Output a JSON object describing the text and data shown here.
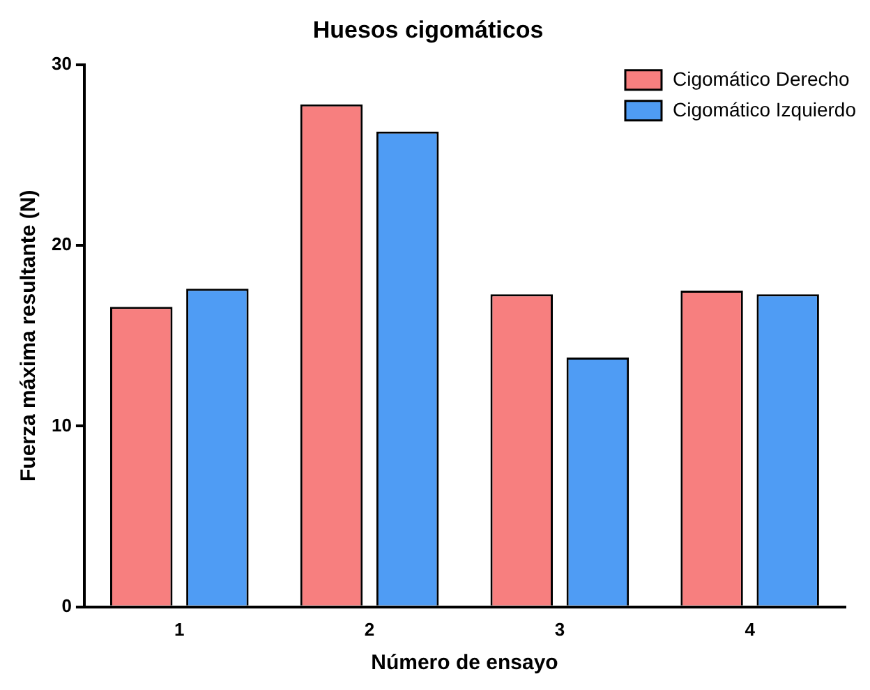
{
  "chart_data": {
    "type": "bar",
    "title": "Huesos cigomáticos",
    "xlabel": "Número de ensayo",
    "ylabel": "Fuerza máxima resultante (N)",
    "categories": [
      "1",
      "2",
      "3",
      "4"
    ],
    "series": [
      {
        "name": "Cigomático Derecho",
        "color": "#f77f7f",
        "values": [
          16.6,
          27.8,
          17.3,
          17.5
        ]
      },
      {
        "name": "Cigomático Izquierdo",
        "color": "#4f9cf4",
        "values": [
          17.6,
          26.3,
          13.8,
          17.3
        ]
      }
    ],
    "ylim": [
      0,
      30
    ],
    "yticks": [
      0,
      10,
      20,
      30
    ],
    "grid": false,
    "legend": "top right"
  }
}
